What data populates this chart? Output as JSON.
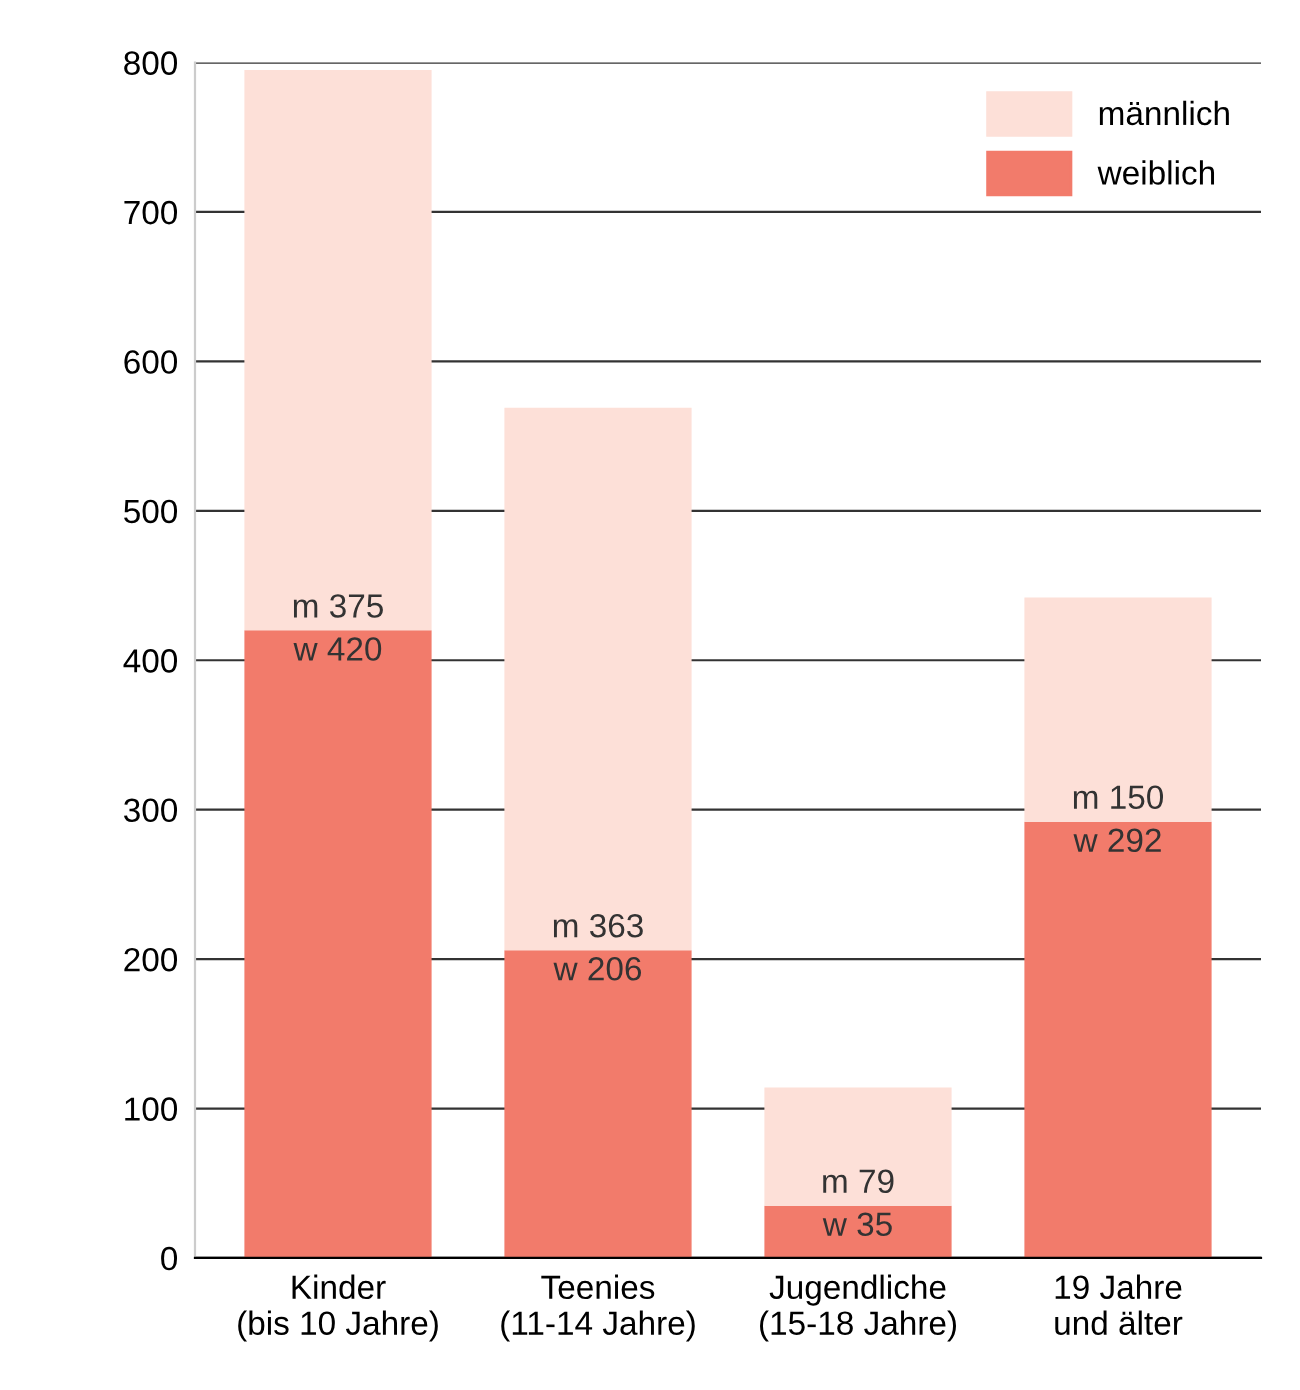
{
  "chart_data": {
    "type": "bar",
    "stacked": true,
    "categories": [
      "Kinder\n(bis 10 Jahre)",
      "Teenies\n(11-14 Jahre)",
      "Jugendliche\n(15-18 Jahre)",
      "19 Jahre\nund älter"
    ],
    "series": [
      {
        "name": "weiblich",
        "color": "#f27b6b",
        "values": [
          420,
          206,
          35,
          292
        ],
        "value_labels": [
          "w 420",
          "w 206",
          "w 35",
          "w 292"
        ]
      },
      {
        "name": "männlich",
        "color": "#fde0d8",
        "values": [
          375,
          363,
          79,
          150
        ],
        "value_labels": [
          "m 375",
          "m 363",
          "m 79",
          "m 150"
        ]
      }
    ],
    "ylim": [
      0,
      800
    ],
    "yticks": [
      0,
      100,
      200,
      300,
      400,
      500,
      600,
      700,
      800
    ],
    "grid": "y",
    "legend": "top right"
  }
}
